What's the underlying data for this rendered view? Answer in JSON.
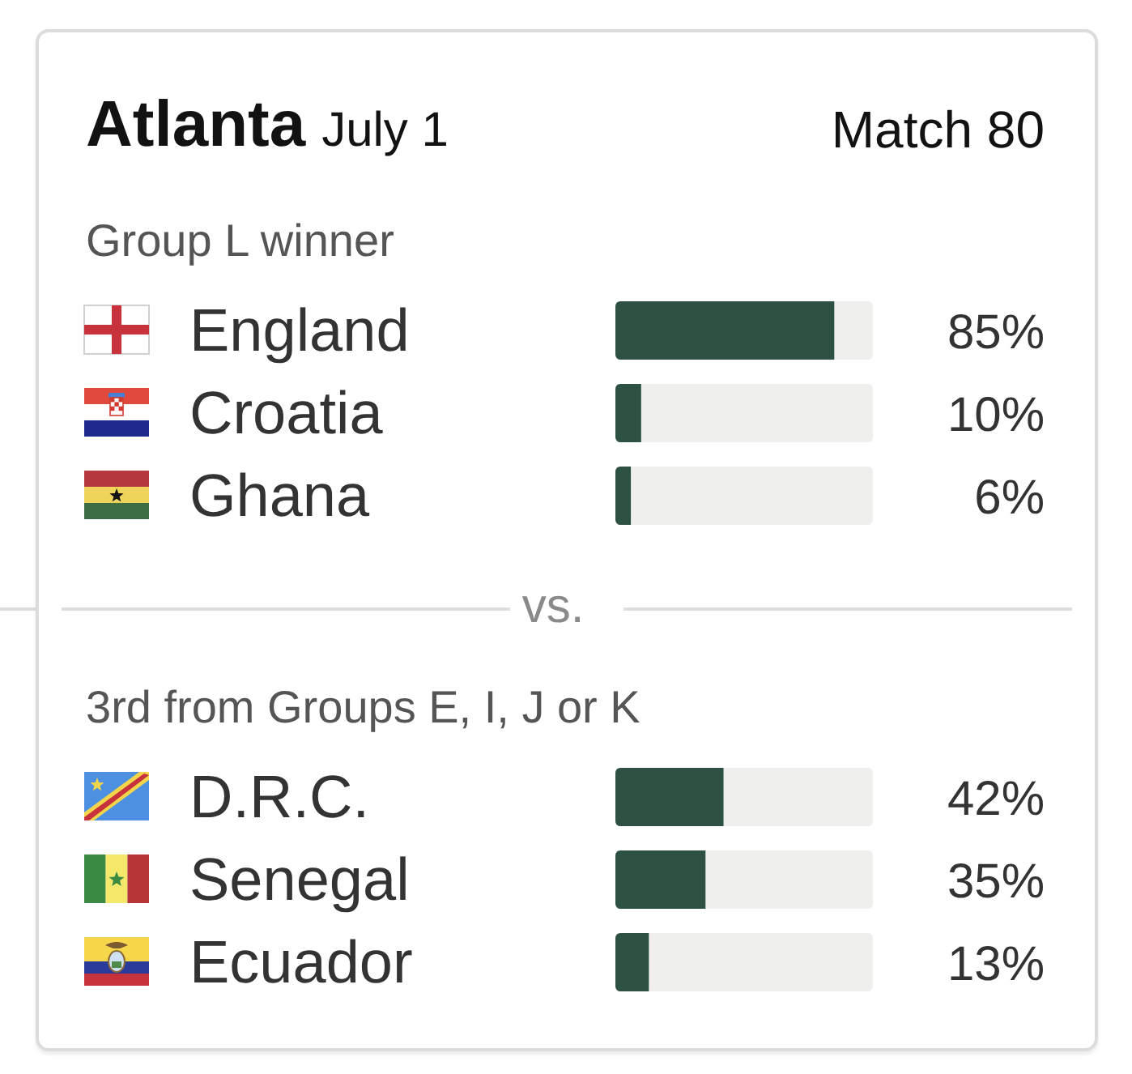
{
  "chart_data": [
    {
      "type": "other",
      "title": "Atlanta",
      "subtitle": "July 1",
      "annotations": [
        "Match 80"
      ]
    },
    {
      "type": "bar",
      "orientation": "horizontal",
      "title": "Group L winner",
      "categories": [
        "England",
        "Croatia",
        "Ghana"
      ],
      "values": [
        85,
        10,
        6
      ],
      "value_labels": [
        "85%",
        "10%",
        "6%"
      ],
      "color": "#2d5142",
      "xlim": [
        0,
        100
      ],
      "tick_labels": "y"
    },
    {
      "type": "bar",
      "orientation": "horizontal",
      "annotations": [
        "vs."
      ],
      "title": "3rd from Groups E, I, J or K",
      "categories": [
        "D.R.C.",
        "Senegal",
        "Ecuador"
      ],
      "values": [
        42,
        35,
        13
      ],
      "value_labels": [
        "42%",
        "35%",
        "13%"
      ],
      "color": "#2d5142",
      "xlim": [
        0,
        100
      ],
      "tick_labels": "y"
    }
  ]
}
